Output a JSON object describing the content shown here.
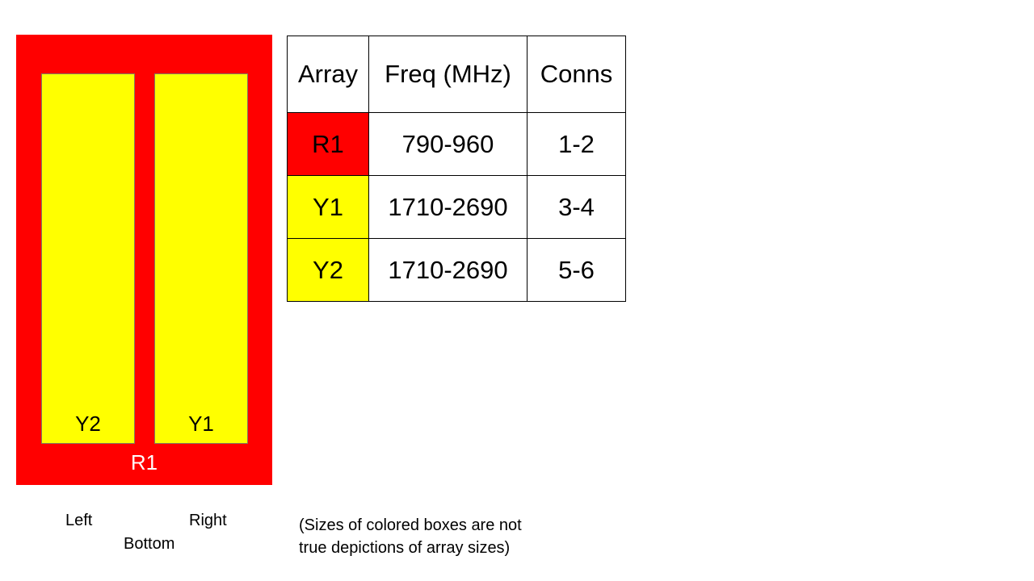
{
  "diagram": {
    "outer_array": {
      "label": "R1",
      "color": "#ff0000"
    },
    "inner_arrays": [
      {
        "label": "Y2",
        "color": "#ffff00"
      },
      {
        "label": "Y1",
        "color": "#ffff00"
      }
    ],
    "orientation": {
      "left": "Left",
      "right": "Right",
      "bottom": "Bottom"
    }
  },
  "table": {
    "headers": [
      "Array",
      "Freq (MHz)",
      "Conns"
    ],
    "rows": [
      {
        "array": "R1",
        "freq": "790-960",
        "conns": "1-2",
        "color": "#ff0000"
      },
      {
        "array": "Y1",
        "freq": "1710-2690",
        "conns": "3-4",
        "color": "#ffff00"
      },
      {
        "array": "Y2",
        "freq": "1710-2690",
        "conns": "5-6",
        "color": "#ffff00"
      }
    ]
  },
  "note": [
    "(Sizes of colored boxes are not",
    "true depictions of array sizes)"
  ]
}
